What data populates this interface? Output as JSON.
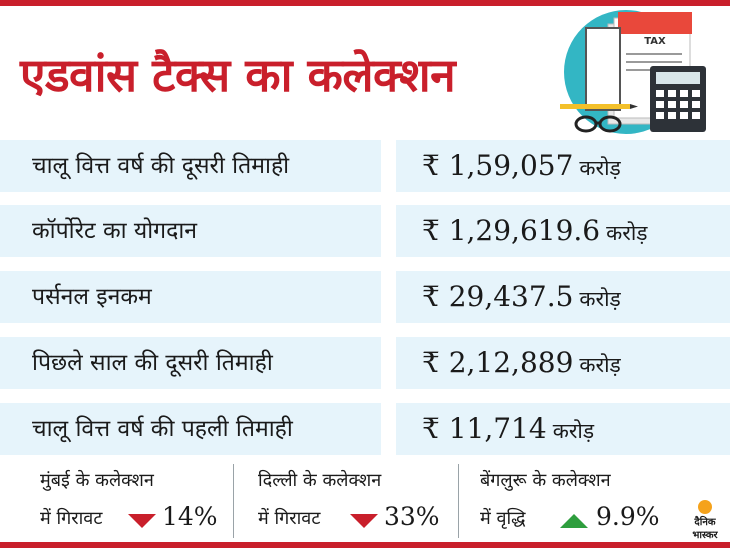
{
  "title": "एडवांस टैक्स का कलेक्शन",
  "illustration": {
    "tax_label": "TAX",
    "icons": [
      "tax-document-icon",
      "calculator-icon",
      "pencil-icon",
      "eyeglasses-icon"
    ]
  },
  "rows": [
    {
      "label": "चालू वित्त वर्ष की दूसरी तिमाही",
      "amount": "₹ 1,59,057",
      "unit": "करोड़"
    },
    {
      "label": "कॉर्पोरेट का योगदान",
      "amount": "₹ 1,29,619.6",
      "unit": "करोड़"
    },
    {
      "label": "पर्सनल इनकम",
      "amount": "₹ 29,437.5",
      "unit": "करोड़"
    },
    {
      "label": "पिछले साल की दूसरी तिमाही",
      "amount": "₹ 2,12,889",
      "unit": "करोड़"
    },
    {
      "label": "चालू वित्त वर्ष की पहली तिमाही",
      "amount": "₹ 11,714",
      "unit": "करोड़"
    }
  ],
  "stats": [
    {
      "line1": "मुंबई के कलेक्शन",
      "line2": "में गिरावट",
      "trend": "down",
      "percent": "14%"
    },
    {
      "line1": "दिल्ली के कलेक्शन",
      "line2": "में गिरावट",
      "trend": "down",
      "percent": "33%"
    },
    {
      "line1": "बेंगलुरू के कलेक्शन",
      "line2": "में वृद्धि",
      "trend": "up",
      "percent": "9.9%"
    }
  ],
  "logo": {
    "line1": "दैनिक",
    "line2": "भास्कर"
  },
  "colors": {
    "accent": "#c91f2b",
    "row_bg": "#e6f4fb",
    "up": "#2e9e3e",
    "down": "#c91f2b",
    "illus_circle": "#33b6c4"
  }
}
